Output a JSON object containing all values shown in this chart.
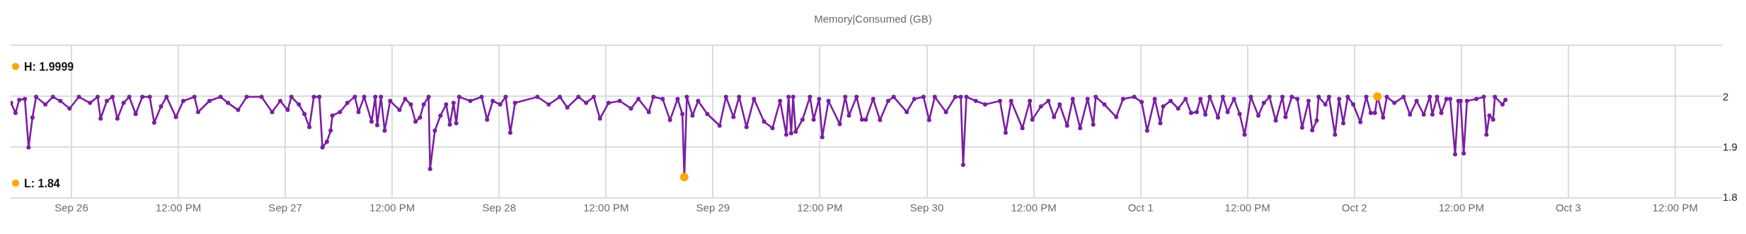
{
  "chart_data": {
    "type": "line",
    "title": "Memory|Consumed (GB)",
    "xlim": [
      "--09-25T17:10",
      "--10-03T17:15"
    ],
    "xticks": [
      {
        "value": "--09-26",
        "label": "Sep 26"
      },
      {
        "value": "--09-26T12:00",
        "label": "12:00 PM"
      },
      {
        "value": "--09-27",
        "label": "Sep 27"
      },
      {
        "value": "--09-27T12:00",
        "label": "12:00 PM"
      },
      {
        "value": "--09-28",
        "label": "Sep 28"
      },
      {
        "value": "--09-28T12:00",
        "label": "12:00 PM"
      },
      {
        "value": "--09-29",
        "label": "Sep 29"
      },
      {
        "value": "--09-29T12:00",
        "label": "12:00 PM"
      },
      {
        "value": "--09-30",
        "label": "Sep 30"
      },
      {
        "value": "--09-30T12:00",
        "label": "12:00 PM"
      },
      {
        "value": "--10-01",
        "label": "Oct 1"
      },
      {
        "value": "--10-01T12:00",
        "label": "12:00 PM"
      },
      {
        "value": "--10-02",
        "label": "Oct 2"
      },
      {
        "value": "--10-02T12:00",
        "label": "12:00 PM"
      },
      {
        "value": "--10-03",
        "label": "Oct 3"
      },
      {
        "value": "--10-03T12:00",
        "label": "12:00 PM"
      }
    ],
    "ylim": [
      1.8,
      2.1
    ],
    "yticks": [
      1.8,
      1.9,
      2
    ],
    "grid": true,
    "marker": "circle",
    "line_style": "solid",
    "annotations": [
      "H: 1.9999",
      "L: 1.84"
    ],
    "series": [
      {
        "color": "#7a1fa2",
        "x": [
          "--09-25T17:13",
          "--09-25T17:43",
          "--09-25T18:08",
          "--09-25T18:46",
          "--09-25T19:11",
          "--09-25T19:37",
          "--09-25T20:02",
          "--09-25T21:04",
          "--09-25T21:55",
          "--09-25T22:45",
          "--09-25T23:47",
          "--09-26T00:50",
          "--09-26T02:05",
          "--09-26T02:56",
          "--09-26T03:16",
          "--09-26T03:58",
          "--09-26T04:36",
          "--09-26T05:09",
          "--09-26T05:51",
          "--09-26T06:29",
          "--09-26T07:12",
          "--09-26T07:57",
          "--09-26T08:47",
          "--09-26T09:17",
          "--09-26T10:03",
          "--09-26T10:40",
          "--09-26T11:43",
          "--09-26T12:33",
          "--09-26T13:48",
          "--09-26T14:13",
          "--09-26T15:29",
          "--09-26T16:44",
          "--09-26T17:34",
          "--09-26T18:42",
          "--09-26T19:40",
          "--09-26T21:20",
          "--09-26T22:31",
          "--09-26T23:26",
          "--09-27T00:16",
          "--09-27T00:41",
          "--09-27T01:31",
          "--09-27T02:09",
          "--09-27T02:42",
          "--09-27T03:12",
          "--09-27T03:49",
          "--09-27T04:10",
          "--09-27T04:40",
          "--09-27T05:05",
          "--09-27T05:17",
          "--09-27T06:08",
          "--09-27T06:58",
          "--09-27T07:48",
          "--09-27T08:13",
          "--09-27T08:51",
          "--09-27T09:41",
          "--09-27T10:06",
          "--09-27T10:19",
          "--09-27T10:44",
          "--09-27T11:09",
          "--09-27T11:46",
          "--09-27T12:49",
          "--09-27T13:27",
          "--09-27T14:05",
          "--09-27T14:37",
          "--09-27T15:07",
          "--09-27T15:32",
          "--09-27T16:05",
          "--09-27T16:15",
          "--09-27T16:47",
          "--09-27T17:25",
          "--09-27T18:03",
          "--09-27T18:28",
          "--09-27T18:53",
          "--09-27T19:11",
          "--09-27T19:31",
          "--09-27T20:46",
          "--09-27T22:02",
          "--09-27T22:39",
          "--09-27T23:17",
          "--09-28T00:07",
          "--09-28T00:44",
          "--09-28T01:15",
          "--09-28T01:47",
          "--09-28T04:18",
          "--09-28T05:34",
          "--09-28T06:49",
          "--09-28T07:39",
          "--09-28T08:54",
          "--09-28T09:46",
          "--09-28T10:37",
          "--09-28T11:19",
          "--09-28T12:17",
          "--09-28T13:32",
          "--09-28T14:48",
          "--09-28T15:38",
          "--09-28T16:48",
          "--09-28T17:19",
          "--09-28T18:21",
          "--09-28T19:11",
          "--09-28T20:02",
          "--09-28T20:34",
          "--09-28T20:47",
          "--09-28T21:04",
          "--09-28T21:42",
          "--09-28T22:20",
          "--09-28T23:22",
          "--09-29T00:45",
          "--09-29T01:28",
          "--09-29T02:18",
          "--09-29T02:56",
          "--09-29T03:46",
          "--09-29T04:36",
          "--09-29T05:44",
          "--09-29T06:41",
          "--09-29T07:32",
          "--09-29T08:14",
          "--09-29T08:29",
          "--09-29T08:47",
          "--09-29T09:00",
          "--09-29T09:17",
          "--09-29T10:03",
          "--09-29T10:53",
          "--09-29T11:18",
          "--09-29T11:55",
          "--09-29T12:16",
          "--09-29T12:58",
          "--09-29T14:14",
          "--09-29T14:51",
          "--09-29T15:16",
          "--09-29T16:07",
          "--09-29T16:44",
          "--09-29T17:09",
          "--09-29T17:59",
          "--09-29T18:45",
          "--09-29T19:40",
          "--09-29T20:17",
          "--09-29T21:45",
          "--09-29T22:36",
          "--09-29T23:38",
          "--09-30T00:16",
          "--09-30T00:54",
          "--09-30T02:09",
          "--09-30T03:12",
          "--09-30T03:49",
          "--09-30T04:05",
          "--09-30T04:27",
          "--09-30T05:30",
          "--09-30T06:33",
          "--09-30T08:13",
          "--09-30T08:51",
          "--09-30T09:28",
          "--09-30T10:44",
          "--09-30T11:34",
          "--09-30T11:51",
          "--09-30T12:49",
          "--09-30T13:39",
          "--09-30T14:17",
          "--09-30T14:55",
          "--09-30T15:45",
          "--09-30T16:23",
          "--09-30T17:13",
          "--09-30T18:03",
          "--09-30T18:41",
          "--09-30T18:58",
          "--09-30T19:56",
          "--09-30T21:16",
          "--09-30T22:02",
          "--09-30T23:17",
          "--10-01T00:07",
          "--10-01T00:44",
          "--10-01T01:35",
          "--10-01T02:13",
          "--10-01T02:32",
          "--10-01T03:22",
          "--10-01T04:13",
          "--10-01T05:03",
          "--10-01T05:40",
          "--10-01T06:18",
          "--10-01T06:43",
          "--10-01T07:16",
          "--10-01T07:46",
          "--10-01T08:41",
          "--10-01T09:14",
          "--10-01T09:46",
          "--10-01T10:29",
          "--10-01T11:07",
          "--10-01T11:40",
          "--10-01T12:22",
          "--10-01T13:13",
          "--10-01T13:50",
          "--10-01T14:28",
          "--10-01T15:10",
          "--10-01T15:55",
          "--10-01T16:16",
          "--10-01T16:58",
          "--10-01T17:36",
          "--10-01T18:08",
          "--10-01T18:51",
          "--10-01T19:16",
          "--10-01T19:46",
          "--10-01T19:59",
          "--10-01T20:44",
          "--10-01T21:09",
          "--10-01T21:49",
          "--10-01T22:17",
          "--10-01T22:45",
          "--10-01T23:15",
          "--10-01T23:52",
          "--10-02T00:40",
          "--10-02T01:20",
          "--10-02T01:50",
          "--10-02T02:18",
          "--10-02T02:35",
          "--10-02T03:13",
          "--10-02T03:38",
          "--10-02T04:29",
          "--10-02T05:31",
          "--10-02T06:14",
          "--10-02T06:59",
          "--10-02T07:47",
          "--10-02T08:27",
          "--10-02T08:45",
          "--10-02T09:17",
          "--10-02T09:45",
          "--10-02T10:20",
          "--10-02T10:45",
          "--10-02T11:18",
          "--10-02T11:40",
          "--10-02T11:55",
          "--10-02T12:16",
          "--10-02T12:38",
          "--10-02T13:41",
          "--10-02T14:31",
          "--10-02T14:49",
          "--10-02T15:09",
          "--10-02T15:34",
          "--10-02T15:46",
          "--10-02T16:37",
          "--10-02T16:57"
        ],
        "values": [
          1.987,
          1.967,
          1.993,
          1.995,
          1.899,
          1.958,
          1.999,
          1.984,
          1.999,
          1.991,
          1.976,
          1.999,
          1.987,
          1.999,
          1.956,
          1.991,
          1.999,
          1.956,
          1.987,
          1.999,
          1.965,
          1.999,
          1.999,
          1.948,
          1.98,
          1.999,
          1.959,
          1.991,
          1.999,
          1.969,
          1.991,
          1.999,
          1.987,
          1.973,
          1.999,
          1.999,
          1.969,
          1.991,
          1.973,
          1.999,
          1.984,
          1.965,
          1.939,
          1.999,
          1.999,
          1.899,
          1.91,
          1.932,
          1.962,
          1.969,
          1.987,
          1.999,
          1.969,
          1.999,
          1.95,
          1.999,
          1.943,
          1.999,
          1.932,
          1.991,
          1.973,
          1.995,
          1.984,
          1.95,
          1.958,
          1.984,
          1.999,
          1.856,
          1.932,
          1.962,
          1.984,
          1.944,
          1.987,
          1.947,
          1.999,
          1.991,
          1.999,
          1.954,
          1.991,
          1.984,
          1.999,
          1.928,
          1.987,
          1.999,
          1.984,
          1.999,
          1.978,
          1.999,
          1.987,
          1.999,
          1.956,
          1.987,
          1.991,
          1.976,
          1.995,
          1.969,
          1.999,
          1.995,
          1.953,
          1.995,
          1.965,
          1.84,
          1.999,
          1.962,
          1.991,
          1.965,
          1.942,
          1.999,
          1.959,
          1.999,
          1.939,
          1.995,
          1.95,
          1.937,
          1.991,
          1.924,
          1.999,
          1.927,
          1.999,
          1.93,
          1.954,
          1.999,
          1.954,
          1.995,
          1.919,
          1.991,
          1.945,
          1.999,
          1.962,
          1.999,
          1.954,
          1.954,
          1.995,
          1.953,
          1.991,
          1.999,
          1.969,
          1.995,
          1.999,
          1.953,
          1.999,
          1.969,
          1.999,
          1.999,
          1.864,
          1.999,
          1.991,
          1.984,
          1.991,
          1.928,
          1.991,
          1.937,
          1.991,
          1.954,
          1.98,
          1.991,
          1.959,
          1.984,
          1.942,
          1.995,
          1.937,
          1.995,
          1.944,
          1.999,
          1.984,
          1.959,
          1.995,
          1.999,
          1.989,
          1.932,
          1.995,
          1.947,
          1.98,
          1.991,
          1.976,
          1.995,
          1.967,
          1.969,
          1.995,
          1.964,
          1.999,
          1.958,
          1.999,
          1.969,
          1.995,
          1.965,
          1.924,
          1.999,
          1.962,
          1.987,
          1.999,
          1.952,
          1.999,
          1.959,
          1.999,
          1.995,
          1.938,
          1.991,
          1.933,
          1.952,
          1.999,
          1.984,
          1.999,
          1.924,
          1.995,
          1.947,
          1.999,
          1.984,
          1.949,
          1.999,
          1.967,
          1.967,
          1.9999,
          1.958,
          1.999,
          1.987,
          1.999,
          1.964,
          1.991,
          1.964,
          1.999,
          1.964,
          1.999,
          1.967,
          1.995,
          1.995,
          1.885,
          1.991,
          1.991,
          1.887,
          1.991,
          1.995,
          1.999,
          1.924,
          1.962,
          1.954,
          1.999,
          1.984,
          1.993
        ]
      },
      {
        "type": "scatter",
        "color": "#ffa600",
        "x": [
          "--10-02T02:35",
          "--09-28T20:47"
        ],
        "values": [
          1.9999,
          1.84
        ]
      }
    ]
  }
}
